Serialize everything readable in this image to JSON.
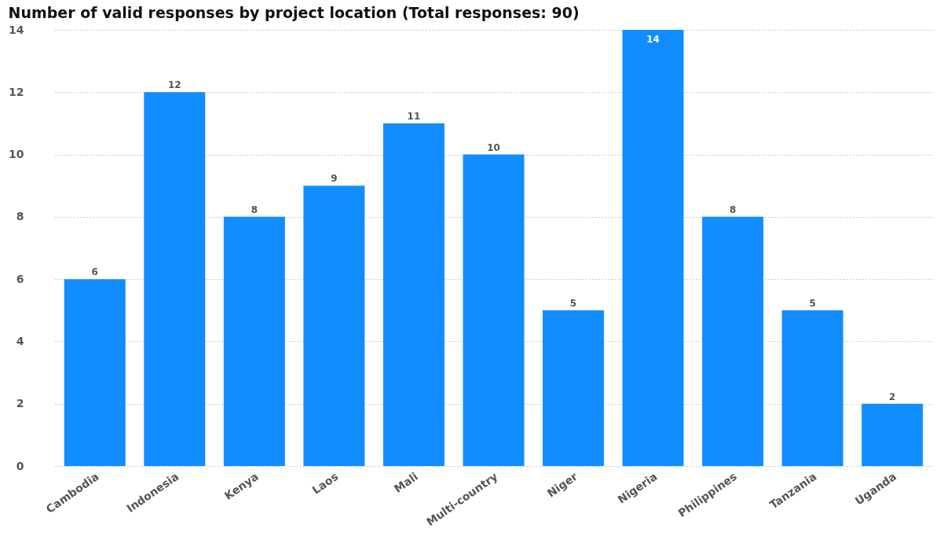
{
  "chart_data": {
    "type": "bar",
    "title": "Number of valid responses by project location (Total responses: 90)",
    "categories": [
      "Cambodia",
      "Indonesia",
      "Kenya",
      "Laos",
      "Mali",
      "Multi-country",
      "Niger",
      "Nigeria",
      "Philippines",
      "Tanzania",
      "Uganda"
    ],
    "values": [
      6,
      12,
      8,
      9,
      11,
      10,
      5,
      14,
      8,
      5,
      2
    ],
    "color": "#118dff",
    "ylim": [
      0,
      14
    ],
    "yticks": [
      0,
      2,
      4,
      6,
      8,
      10,
      12,
      14
    ],
    "grid": "y",
    "data_labels": true
  }
}
